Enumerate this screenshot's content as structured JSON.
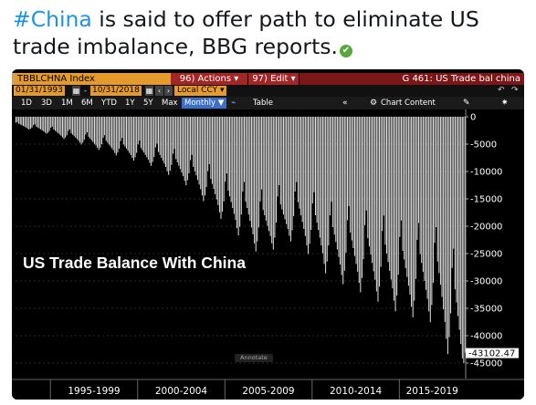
{
  "tweet": {
    "hashtag": "#China",
    "rest": " is said to offer path to eliminate US trade imbalance, BBG reports."
  },
  "terminal": {
    "ticker": "TBBLCHNA Index",
    "actions": "96) Actions ▾",
    "edit": "97) Edit ▾",
    "title": "G 461: US Trade bal china",
    "start_date": "01/31/1993",
    "end_date": "10/31/2018",
    "currency": "Local CCY ▾",
    "periods": [
      "1D",
      "3D",
      "1M",
      "6M",
      "YTD",
      "1Y",
      "5Y",
      "Max"
    ],
    "frequency": "Monthly ▼",
    "table_label": "Table",
    "chart_content": "Chart Content",
    "overlay_title": "US Trade Balance With China",
    "annotate": "Annotate"
  },
  "chart_data": {
    "type": "bar",
    "title": "US Trade Balance With China",
    "x_period_labels": [
      "1995-1999",
      "2000-2004",
      "2005-2009",
      "2010-2014",
      "2015-2019"
    ],
    "y_ticks": [
      "0",
      "-5000",
      "-10000",
      "-15000",
      "-20000",
      "-25000",
      "-30000",
      "-35000",
      "-40000",
      "-45000"
    ],
    "ylim": [
      -45000,
      0
    ],
    "last_value_label": "-43102.47",
    "x_start": "1993-01",
    "x_end": "2018-10",
    "anchors": [
      {
        "date": "1993",
        "value": -1500
      },
      {
        "date": "1995",
        "value": -2800
      },
      {
        "date": "1997",
        "value": -4500
      },
      {
        "date": "1999",
        "value": -6200
      },
      {
        "date": "2001",
        "value": -7800
      },
      {
        "date": "2003",
        "value": -11000
      },
      {
        "date": "2005",
        "value": -16500
      },
      {
        "date": "2007",
        "value": -21500
      },
      {
        "date": "2009",
        "value": -19000
      },
      {
        "date": "2011",
        "value": -25000
      },
      {
        "date": "2013",
        "value": -27500
      },
      {
        "date": "2015",
        "value": -30500
      },
      {
        "date": "2017",
        "value": -32000
      },
      {
        "date": "2018-10",
        "value": -43102.47
      }
    ]
  }
}
